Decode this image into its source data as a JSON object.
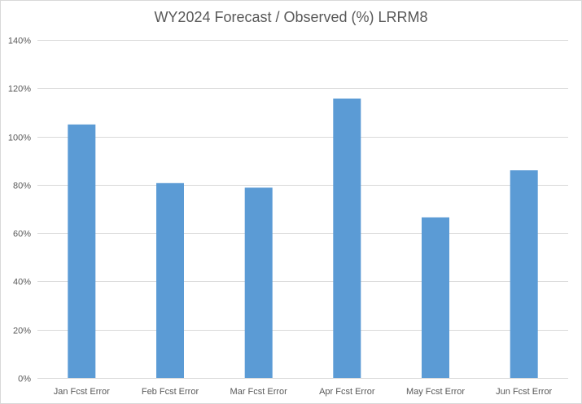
{
  "chart_data": {
    "type": "bar",
    "title": "WY2024 Forecast / Observed (%) LRRM8",
    "xlabel": "",
    "ylabel": "",
    "categories": [
      "Jan Fcst Error",
      "Feb Fcst Error",
      "Mar Fcst Error",
      "Apr Fcst Error",
      "May Fcst Error",
      "Jun Fcst Error"
    ],
    "values": [
      105,
      80.7,
      78.8,
      115.7,
      66.5,
      86
    ],
    "ylim": [
      0,
      140
    ],
    "yticks": [
      0,
      20,
      40,
      60,
      80,
      100,
      120,
      140
    ],
    "ytick_labels": [
      "0%",
      "20%",
      "40%",
      "60%",
      "80%",
      "100%",
      "120%",
      "140%"
    ],
    "grid": true,
    "legend": "none",
    "bar_color": "#5b9bd5",
    "grid_color": "#d9d9d9"
  }
}
